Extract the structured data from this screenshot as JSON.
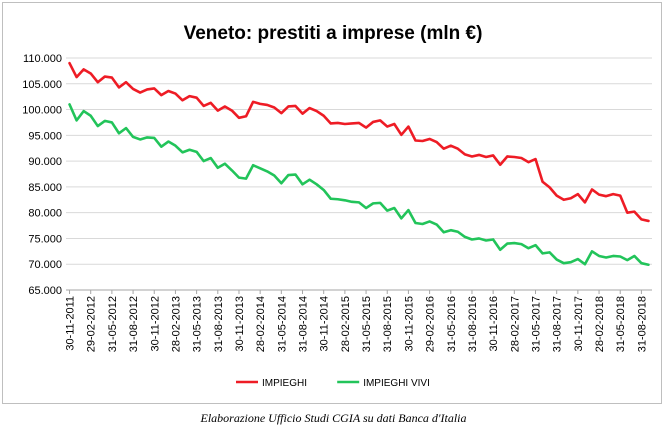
{
  "caption": "Elaborazione Ufficio Studi CGIA su dati Banca d'Italia",
  "chart_data": {
    "type": "line",
    "title": "Veneto: prestiti a imprese (mln €)",
    "xlabel": "",
    "ylabel": "",
    "ylim": [
      65000,
      110000
    ],
    "yticks": [
      65000,
      70000,
      75000,
      80000,
      85000,
      90000,
      95000,
      100000,
      105000,
      110000
    ],
    "ytick_labels": [
      "65.000",
      "70.000",
      "75.000",
      "80.000",
      "85.000",
      "90.000",
      "95.000",
      "100.000",
      "105.000",
      "110.000"
    ],
    "x_tick_labels": [
      "30-11-2011",
      "29-02-2012",
      "31-05-2012",
      "31-08-2012",
      "30-11-2012",
      "28-02-2013",
      "31-05-2013",
      "31-08-2013",
      "30-11-2013",
      "28-02-2014",
      "31-05-2014",
      "31-08-2014",
      "30-11-2014",
      "28-02-2015",
      "31-05-2015",
      "31-08-2015",
      "30-11-2015",
      "29-02-2016",
      "31-05-2016",
      "31-08-2016",
      "30-11-2016",
      "28-02-2017",
      "31-05-2017",
      "31-08-2017",
      "30-11-2017",
      "28-02-2018",
      "31-05-2018",
      "31-08-2018"
    ],
    "x_start_month": "11-2011",
    "grid": "horizontal",
    "legend_position": "bottom",
    "series": [
      {
        "name": "IMPIEGHI",
        "color": "#ee1c25",
        "values": [
          109000,
          106300,
          107800,
          107000,
          105300,
          106400,
          106200,
          104300,
          105300,
          104000,
          103300,
          103900,
          104100,
          102800,
          103600,
          103100,
          101800,
          102600,
          102300,
          100700,
          101300,
          99800,
          100600,
          99800,
          98400,
          98700,
          101500,
          101100,
          100900,
          100400,
          99300,
          100600,
          100700,
          99200,
          100300,
          99700,
          98800,
          97300,
          97400,
          97200,
          97300,
          97400,
          96500,
          97600,
          97900,
          96700,
          97200,
          95100,
          96700,
          94000,
          93900,
          94300,
          93700,
          92400,
          93000,
          92400,
          91300,
          90900,
          91200,
          90800,
          91100,
          89300,
          90900,
          90800,
          90600,
          89800,
          90400,
          86000,
          84900,
          83300,
          82500,
          82800,
          83600,
          82000,
          84500,
          83500,
          83200,
          83600,
          83300,
          80000,
          80200,
          78700,
          78400
        ]
      },
      {
        "name": "IMPIEGHI VIVI",
        "color": "#22c45a",
        "values": [
          101000,
          97900,
          99700,
          98800,
          96800,
          97800,
          97500,
          95400,
          96400,
          94700,
          94200,
          94600,
          94500,
          92800,
          93800,
          93000,
          91700,
          92200,
          91800,
          90000,
          90600,
          88700,
          89500,
          88200,
          86800,
          86600,
          89200,
          88600,
          88000,
          87200,
          85700,
          87300,
          87400,
          85500,
          86400,
          85500,
          84400,
          82700,
          82600,
          82400,
          82100,
          82000,
          80900,
          81800,
          81900,
          80400,
          80900,
          78900,
          80500,
          78000,
          77800,
          78300,
          77700,
          76200,
          76600,
          76300,
          75300,
          74800,
          75000,
          74600,
          74800,
          72800,
          74000,
          74100,
          73900,
          73100,
          73700,
          72100,
          72300,
          70900,
          70200,
          70400,
          71000,
          70000,
          72500,
          71600,
          71300,
          71600,
          71500,
          70800,
          71600,
          70200,
          69900
        ]
      }
    ]
  }
}
